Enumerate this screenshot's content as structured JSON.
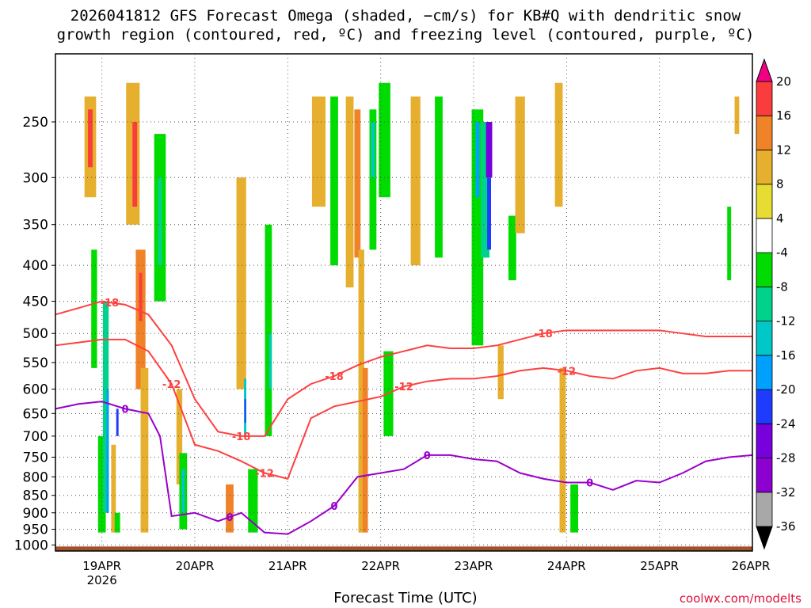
{
  "title_line1": "2026041812 GFS Forecast Omega (shaded, −cm/s) for KB#Q with dendritic snow",
  "title_line2": "growth region (contoured, red, ºC) and freezing level (contoured, purple, ºC)",
  "xlabel": "Forecast Time (UTC)",
  "credit": "coolwx.com/modelts",
  "chart_data": {
    "type": "heatmap",
    "title": "2026041812 GFS Forecast Omega (shaded, −cm/s) for KB#Q with dendritic snow growth region (contoured, red, ºC) and freezing level (contoured, purple, ºC)",
    "xlabel": "Forecast Time (UTC)",
    "ylabel": "",
    "x_ticks": [
      "19APR\n2026",
      "20APR",
      "21APR",
      "22APR",
      "23APR",
      "24APR",
      "25APR",
      "26APR"
    ],
    "y_ticks": [
      250,
      300,
      350,
      400,
      450,
      500,
      550,
      600,
      650,
      700,
      750,
      800,
      850,
      900,
      950,
      1000
    ],
    "y_range_hPa": [
      1020,
      200
    ],
    "x_range_hours_from_start": [
      0,
      180
    ],
    "colorbar": {
      "levels": [
        -36,
        -32,
        -28,
        -24,
        -20,
        -16,
        -12,
        -8,
        -4,
        4,
        8,
        12,
        16,
        20
      ],
      "colors": [
        "#000000",
        "#a8a8a8",
        "#8c00d2",
        "#7800dc",
        "#1e3cff",
        "#00a0ff",
        "#00c8c8",
        "#00d28c",
        "#00dc00",
        "#ffffff",
        "#e6dc32",
        "#e6af2d",
        "#f08228",
        "#fa3c3c",
        "#f00082"
      ],
      "units": "−cm/s"
    },
    "contours": {
      "dgz_top": {
        "label": "-18",
        "color": "#ff4040",
        "hours": [
          0,
          6,
          12,
          18,
          24,
          30,
          36,
          42,
          48,
          54,
          60,
          66,
          72,
          78,
          84,
          90,
          96,
          102,
          108,
          114,
          120,
          126,
          132,
          138,
          144,
          150,
          156,
          162,
          168,
          174,
          180
        ],
        "pressure": [
          470,
          460,
          450,
          455,
          470,
          520,
          620,
          690,
          700,
          700,
          620,
          590,
          575,
          555,
          540,
          530,
          520,
          525,
          525,
          520,
          510,
          500,
          495,
          495,
          495,
          495,
          495,
          500,
          505,
          505,
          505
        ]
      },
      "dgz_bottom": {
        "label": "-12",
        "color": "#ff4040",
        "hours": [
          0,
          6,
          12,
          18,
          24,
          30,
          36,
          42,
          48,
          54,
          60,
          66,
          72,
          78,
          84,
          90,
          96,
          102,
          108,
          114,
          120,
          126,
          132,
          138,
          144,
          150,
          156,
          162,
          168,
          174,
          180
        ],
        "pressure": [
          520,
          515,
          510,
          510,
          530,
          590,
          720,
          735,
          760,
          790,
          805,
          660,
          635,
          625,
          615,
          595,
          585,
          580,
          580,
          575,
          565,
          560,
          565,
          575,
          580,
          565,
          560,
          570,
          570,
          565,
          565
        ]
      },
      "freezing_level": {
        "label": "0",
        "color": "#9900cc",
        "hours": [
          0,
          6,
          12,
          18,
          24,
          27,
          30,
          36,
          42,
          48,
          54,
          60,
          66,
          72,
          78,
          84,
          90,
          96,
          102,
          108,
          114,
          120,
          126,
          132,
          138,
          144,
          150,
          156,
          162,
          168,
          174,
          180
        ],
        "pressure": [
          640,
          630,
          625,
          640,
          650,
          700,
          910,
          900,
          925,
          900,
          960,
          965,
          925,
          880,
          800,
          790,
          780,
          745,
          745,
          755,
          760,
          790,
          805,
          815,
          815,
          835,
          810,
          815,
          790,
          760,
          750,
          745
        ]
      }
    },
    "cells": [
      {
        "h": 9,
        "p0": 230,
        "p1": 320,
        "w": 3.0,
        "v": 8
      },
      {
        "h": 9,
        "p0": 240,
        "p1": 290,
        "w": 1.2,
        "v": 16
      },
      {
        "h": 10,
        "p0": 380,
        "p1": 560,
        "w": 1.5,
        "v": -8
      },
      {
        "h": 12,
        "p0": 700,
        "p1": 960,
        "w": 2.0,
        "v": -8
      },
      {
        "h": 13,
        "p0": 450,
        "p1": 900,
        "w": 1.5,
        "v": -12
      },
      {
        "h": 13.5,
        "p0": 600,
        "p1": 900,
        "w": 0.6,
        "v": -20
      },
      {
        "h": 16,
        "p0": 640,
        "p1": 700,
        "w": 0.6,
        "v": -24
      },
      {
        "h": 15,
        "p0": 720,
        "p1": 960,
        "w": 1.2,
        "v": 8
      },
      {
        "h": 16,
        "p0": 900,
        "p1": 960,
        "w": 1.4,
        "v": -8
      },
      {
        "h": 20,
        "p0": 220,
        "p1": 350,
        "w": 3.5,
        "v": 8
      },
      {
        "h": 20.5,
        "p0": 250,
        "p1": 330,
        "w": 1.2,
        "v": 16
      },
      {
        "h": 22,
        "p0": 380,
        "p1": 600,
        "w": 2.5,
        "v": 12
      },
      {
        "h": 22,
        "p0": 410,
        "p1": 480,
        "w": 0.8,
        "v": 16
      },
      {
        "h": 23,
        "p0": 560,
        "p1": 960,
        "w": 2.0,
        "v": 8
      },
      {
        "h": 27,
        "p0": 260,
        "p1": 450,
        "w": 3.0,
        "v": -8
      },
      {
        "h": 27,
        "p0": 300,
        "p1": 400,
        "w": 1.0,
        "v": -12
      },
      {
        "h": 32,
        "p0": 600,
        "p1": 820,
        "w": 1.5,
        "v": 8
      },
      {
        "h": 33,
        "p0": 740,
        "p1": 950,
        "w": 2.0,
        "v": -8
      },
      {
        "h": 33,
        "p0": 780,
        "p1": 900,
        "w": 0.8,
        "v": -16
      },
      {
        "h": 45,
        "p0": 820,
        "p1": 960,
        "w": 2.0,
        "v": 12
      },
      {
        "h": 48,
        "p0": 300,
        "p1": 600,
        "w": 2.5,
        "v": 8
      },
      {
        "h": 49,
        "p0": 580,
        "p1": 700,
        "w": 0.6,
        "v": -16
      },
      {
        "h": 49,
        "p0": 620,
        "p1": 670,
        "w": 0.4,
        "v": -24
      },
      {
        "h": 51,
        "p0": 780,
        "p1": 960,
        "w": 2.5,
        "v": -8
      },
      {
        "h": 55,
        "p0": 350,
        "p1": 700,
        "w": 1.8,
        "v": -8
      },
      {
        "h": 55.5,
        "p0": 500,
        "p1": 600,
        "w": 0.6,
        "v": -16
      },
      {
        "h": 68,
        "p0": 230,
        "p1": 330,
        "w": 3.5,
        "v": 8
      },
      {
        "h": 72,
        "p0": 230,
        "p1": 400,
        "w": 2.0,
        "v": -8
      },
      {
        "h": 76,
        "p0": 230,
        "p1": 430,
        "w": 2.0,
        "v": 8
      },
      {
        "h": 78,
        "p0": 240,
        "p1": 390,
        "w": 1.6,
        "v": 12
      },
      {
        "h": 79,
        "p0": 380,
        "p1": 960,
        "w": 1.5,
        "v": 8
      },
      {
        "h": 80,
        "p0": 560,
        "p1": 960,
        "w": 1.4,
        "v": 12
      },
      {
        "h": 82,
        "p0": 240,
        "p1": 380,
        "w": 1.8,
        "v": -8
      },
      {
        "h": 82,
        "p0": 250,
        "p1": 300,
        "w": 0.9,
        "v": -16
      },
      {
        "h": 85,
        "p0": 220,
        "p1": 320,
        "w": 3.0,
        "v": -8
      },
      {
        "h": 86,
        "p0": 530,
        "p1": 700,
        "w": 2.5,
        "v": -8
      },
      {
        "h": 93,
        "p0": 230,
        "p1": 400,
        "w": 2.5,
        "v": 8
      },
      {
        "h": 99,
        "p0": 230,
        "p1": 390,
        "w": 2.0,
        "v": -8
      },
      {
        "h": 109,
        "p0": 240,
        "p1": 520,
        "w": 3.0,
        "v": -8
      },
      {
        "h": 109,
        "p0": 250,
        "p1": 320,
        "w": 1.0,
        "v": -20
      },
      {
        "h": 111,
        "p0": 250,
        "p1": 390,
        "w": 2.2,
        "v": -12
      },
      {
        "h": 112,
        "p0": 250,
        "p1": 300,
        "w": 1.6,
        "v": -28
      },
      {
        "h": 112,
        "p0": 300,
        "p1": 380,
        "w": 1.0,
        "v": -24
      },
      {
        "h": 115,
        "p0": 520,
        "p1": 620,
        "w": 1.5,
        "v": 8
      },
      {
        "h": 118,
        "p0": 340,
        "p1": 420,
        "w": 2.0,
        "v": -8
      },
      {
        "h": 120,
        "p0": 230,
        "p1": 360,
        "w": 2.5,
        "v": 8
      },
      {
        "h": 130,
        "p0": 220,
        "p1": 330,
        "w": 2.0,
        "v": 8
      },
      {
        "h": 131,
        "p0": 560,
        "p1": 960,
        "w": 1.6,
        "v": 8
      },
      {
        "h": 134,
        "p0": 820,
        "p1": 960,
        "w": 2.0,
        "v": -8
      },
      {
        "h": 176,
        "p0": 230,
        "p1": 260,
        "w": 1.2,
        "v": 8
      },
      {
        "h": 174,
        "p0": 330,
        "p1": 420,
        "w": 1.0,
        "v": -8
      }
    ]
  }
}
